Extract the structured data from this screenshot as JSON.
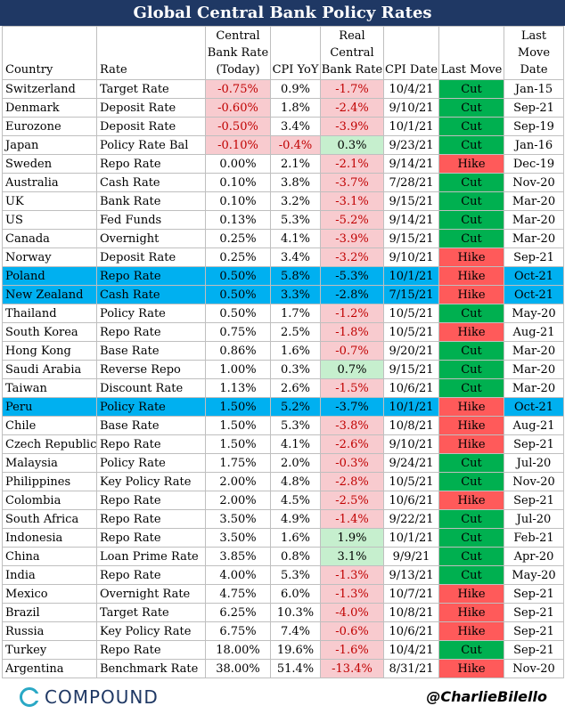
{
  "title": "Global Central Bank Policy Rates",
  "headers": {
    "country": "Country",
    "rate": "Rate",
    "cb_rate": [
      "Central",
      "Bank Rate",
      "(Today)"
    ],
    "cpi": "CPI YoY",
    "real": [
      "Real",
      "Central",
      "Bank Rate"
    ],
    "cpi_date": "CPI Date",
    "last_move": "Last Move",
    "last_move_date": [
      "Last",
      "Move",
      "Date"
    ]
  },
  "rows": [
    {
      "country": "Switzerland",
      "rate": "Target Rate",
      "cb": "-0.75%",
      "cpi": "0.9%",
      "real": "-1.7%",
      "date": "10/4/21",
      "move": "Cut",
      "move_date": "Jan-15"
    },
    {
      "country": "Denmark",
      "rate": "Deposit Rate",
      "cb": "-0.60%",
      "cpi": "1.8%",
      "real": "-2.4%",
      "date": "9/10/21",
      "move": "Cut",
      "move_date": "Sep-21"
    },
    {
      "country": "Eurozone",
      "rate": "Deposit Rate",
      "cb": "-0.50%",
      "cpi": "3.4%",
      "real": "-3.9%",
      "date": "10/1/21",
      "move": "Cut",
      "move_date": "Sep-19"
    },
    {
      "country": "Japan",
      "rate": "Policy Rate Bal",
      "cb": "-0.10%",
      "cpi": "-0.4%",
      "real": "0.3%",
      "date": "9/23/21",
      "move": "Cut",
      "move_date": "Jan-16"
    },
    {
      "country": "Sweden",
      "rate": "Repo Rate",
      "cb": "0.00%",
      "cpi": "2.1%",
      "real": "-2.1%",
      "date": "9/14/21",
      "move": "Hike",
      "move_date": "Dec-19"
    },
    {
      "country": "Australia",
      "rate": "Cash Rate",
      "cb": "0.10%",
      "cpi": "3.8%",
      "real": "-3.7%",
      "date": "7/28/21",
      "move": "Cut",
      "move_date": "Nov-20"
    },
    {
      "country": "UK",
      "rate": "Bank Rate",
      "cb": "0.10%",
      "cpi": "3.2%",
      "real": "-3.1%",
      "date": "9/15/21",
      "move": "Cut",
      "move_date": "Mar-20"
    },
    {
      "country": "US",
      "rate": "Fed Funds",
      "cb": "0.13%",
      "cpi": "5.3%",
      "real": "-5.2%",
      "date": "9/14/21",
      "move": "Cut",
      "move_date": "Mar-20"
    },
    {
      "country": "Canada",
      "rate": "Overnight",
      "cb": "0.25%",
      "cpi": "4.1%",
      "real": "-3.9%",
      "date": "9/15/21",
      "move": "Cut",
      "move_date": "Mar-20"
    },
    {
      "country": "Norway",
      "rate": "Deposit Rate",
      "cb": "0.25%",
      "cpi": "3.4%",
      "real": "-3.2%",
      "date": "9/10/21",
      "move": "Hike",
      "move_date": "Sep-21"
    },
    {
      "country": "Poland",
      "rate": "Repo Rate",
      "cb": "0.50%",
      "cpi": "5.8%",
      "real": "-5.3%",
      "date": "10/1/21",
      "move": "Hike",
      "move_date": "Oct-21",
      "highlight": true
    },
    {
      "country": "New Zealand",
      "rate": "Cash Rate",
      "cb": "0.50%",
      "cpi": "3.3%",
      "real": "-2.8%",
      "date": "7/15/21",
      "move": "Hike",
      "move_date": "Oct-21",
      "highlight": true
    },
    {
      "country": "Thailand",
      "rate": "Policy Rate",
      "cb": "0.50%",
      "cpi": "1.7%",
      "real": "-1.2%",
      "date": "10/5/21",
      "move": "Cut",
      "move_date": "May-20"
    },
    {
      "country": "South Korea",
      "rate": "Repo Rate",
      "cb": "0.75%",
      "cpi": "2.5%",
      "real": "-1.8%",
      "date": "10/5/21",
      "move": "Hike",
      "move_date": "Aug-21"
    },
    {
      "country": "Hong Kong",
      "rate": "Base Rate",
      "cb": "0.86%",
      "cpi": "1.6%",
      "real": "-0.7%",
      "date": "9/20/21",
      "move": "Cut",
      "move_date": "Mar-20"
    },
    {
      "country": "Saudi Arabia",
      "rate": "Reverse Repo",
      "cb": "1.00%",
      "cpi": "0.3%",
      "real": "0.7%",
      "date": "9/15/21",
      "move": "Cut",
      "move_date": "Mar-20"
    },
    {
      "country": "Taiwan",
      "rate": "Discount Rate",
      "cb": "1.13%",
      "cpi": "2.6%",
      "real": "-1.5%",
      "date": "10/6/21",
      "move": "Cut",
      "move_date": "Mar-20"
    },
    {
      "country": "Peru",
      "rate": "Policy Rate",
      "cb": "1.50%",
      "cpi": "5.2%",
      "real": "-3.7%",
      "date": "10/1/21",
      "move": "Hike",
      "move_date": "Oct-21",
      "highlight": true
    },
    {
      "country": "Chile",
      "rate": "Base Rate",
      "cb": "1.50%",
      "cpi": "5.3%",
      "real": "-3.8%",
      "date": "10/8/21",
      "move": "Hike",
      "move_date": "Aug-21"
    },
    {
      "country": "Czech Republic",
      "rate": "Repo Rate",
      "cb": "1.50%",
      "cpi": "4.1%",
      "real": "-2.6%",
      "date": "9/10/21",
      "move": "Hike",
      "move_date": "Sep-21"
    },
    {
      "country": "Malaysia",
      "rate": "Policy Rate",
      "cb": "1.75%",
      "cpi": "2.0%",
      "real": "-0.3%",
      "date": "9/24/21",
      "move": "Cut",
      "move_date": "Jul-20"
    },
    {
      "country": "Philippines",
      "rate": "Key Policy Rate",
      "cb": "2.00%",
      "cpi": "4.8%",
      "real": "-2.8%",
      "date": "10/5/21",
      "move": "Cut",
      "move_date": "Nov-20"
    },
    {
      "country": "Colombia",
      "rate": "Repo Rate",
      "cb": "2.00%",
      "cpi": "4.5%",
      "real": "-2.5%",
      "date": "10/6/21",
      "move": "Hike",
      "move_date": "Sep-21"
    },
    {
      "country": "South Africa",
      "rate": "Repo Rate",
      "cb": "3.50%",
      "cpi": "4.9%",
      "real": "-1.4%",
      "date": "9/22/21",
      "move": "Cut",
      "move_date": "Jul-20"
    },
    {
      "country": "Indonesia",
      "rate": "Repo Rate",
      "cb": "3.50%",
      "cpi": "1.6%",
      "real": "1.9%",
      "date": "10/1/21",
      "move": "Cut",
      "move_date": "Feb-21"
    },
    {
      "country": "China",
      "rate": "Loan Prime Rate",
      "cb": "3.85%",
      "cpi": "0.8%",
      "real": "3.1%",
      "date": "9/9/21",
      "move": "Cut",
      "move_date": "Apr-20"
    },
    {
      "country": "India",
      "rate": "Repo Rate",
      "cb": "4.00%",
      "cpi": "5.3%",
      "real": "-1.3%",
      "date": "9/13/21",
      "move": "Cut",
      "move_date": "May-20"
    },
    {
      "country": "Mexico",
      "rate": "Overnight Rate",
      "cb": "4.75%",
      "cpi": "6.0%",
      "real": "-1.3%",
      "date": "10/7/21",
      "move": "Hike",
      "move_date": "Sep-21"
    },
    {
      "country": "Brazil",
      "rate": "Target Rate",
      "cb": "6.25%",
      "cpi": "10.3%",
      "real": "-4.0%",
      "date": "10/8/21",
      "move": "Hike",
      "move_date": "Sep-21"
    },
    {
      "country": "Russia",
      "rate": "Key Policy Rate",
      "cb": "6.75%",
      "cpi": "7.4%",
      "real": "-0.6%",
      "date": "10/6/21",
      "move": "Hike",
      "move_date": "Sep-21"
    },
    {
      "country": "Turkey",
      "rate": "Repo Rate",
      "cb": "18.00%",
      "cpi": "19.6%",
      "real": "-1.6%",
      "date": "10/4/21",
      "move": "Cut",
      "move_date": "Sep-21"
    },
    {
      "country": "Argentina",
      "rate": "Benchmark Rate",
      "cb": "38.00%",
      "cpi": "51.4%",
      "real": "-13.4%",
      "date": "8/31/21",
      "move": "Hike",
      "move_date": "Nov-20"
    }
  ],
  "colors": {
    "title_bg": "#1f3864",
    "cut": "#00b050",
    "hike": "#ff5a5a",
    "highlight": "#00b0f0",
    "negative_text": "#c00000",
    "negative_bg": "#f8cbcf",
    "positive_bg": "#c6efce"
  },
  "footer": {
    "logo_text": "COMPOUND",
    "handle": "@CharlieBilello",
    "logo_icon": "compound-c-icon"
  }
}
